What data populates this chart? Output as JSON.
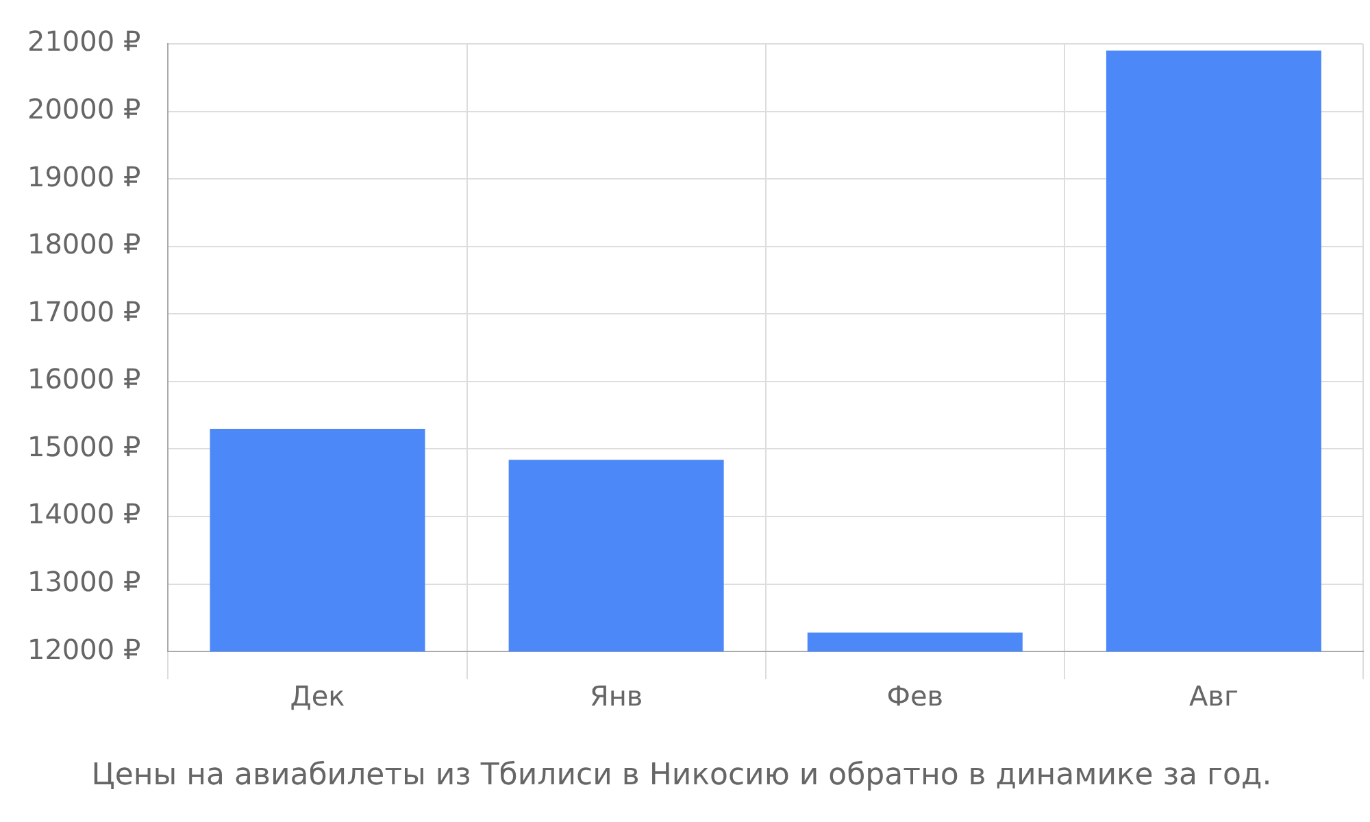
{
  "chart_data": {
    "type": "bar",
    "title": "Цены на авиабилеты из Тбилиси в Никосию и обратно в динамике за год.",
    "categories": [
      "Дек",
      "Янв",
      "Фев",
      "Авг"
    ],
    "values": [
      15300,
      14840,
      12280,
      20900
    ],
    "color": "#4d88f9",
    "ylim": [
      12000,
      21000
    ],
    "yticks": [
      {
        "value": 12000,
        "label": "12000 ₽"
      },
      {
        "value": 13000,
        "label": "13000 ₽"
      },
      {
        "value": 14000,
        "label": "14000 ₽"
      },
      {
        "value": 15000,
        "label": "15000 ₽"
      },
      {
        "value": 16000,
        "label": "16000 ₽"
      },
      {
        "value": 17000,
        "label": "17000 ₽"
      },
      {
        "value": 18000,
        "label": "18000 ₽"
      },
      {
        "value": 19000,
        "label": "19000 ₽"
      },
      {
        "value": 20000,
        "label": "20000 ₽"
      },
      {
        "value": 21000,
        "label": "21000 ₽"
      }
    ],
    "grid": true
  }
}
